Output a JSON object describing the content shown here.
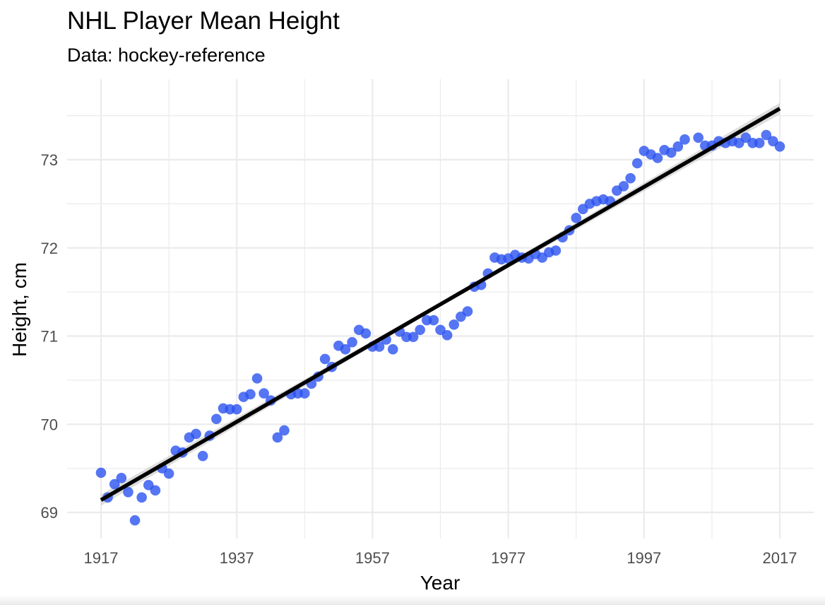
{
  "chart_data": {
    "type": "scatter",
    "title": "NHL Player Mean Height",
    "subtitle": "Data: hockey-reference",
    "xlabel": "Year",
    "ylabel": "Height, cm",
    "xlim": [
      1914,
      2020
    ],
    "ylim": [
      68.7,
      73.7
    ],
    "x_ticks": [
      1917,
      1937,
      1957,
      1977,
      1997,
      2017
    ],
    "y_ticks": [
      69,
      70,
      71,
      72,
      73
    ],
    "grid": true,
    "legend": "none",
    "colors": {
      "points": "#2a52f0",
      "trend": "#000000",
      "ribbon": "#bdbdbd",
      "grid": "#ebebeb"
    },
    "trend_line": {
      "x": [
        1917,
        2017
      ],
      "y": [
        69.14,
        73.58
      ]
    },
    "series": [
      {
        "x": [
          1917,
          1918,
          1919,
          1920,
          1921,
          1922,
          1923,
          1924,
          1925,
          1926,
          1927,
          1928,
          1929,
          1930,
          1931,
          1932,
          1933,
          1934,
          1935,
          1936,
          1937,
          1938,
          1939,
          1940,
          1941,
          1942,
          1943,
          1944,
          1945,
          1946,
          1947,
          1948,
          1949,
          1950,
          1951,
          1952,
          1953,
          1954,
          1955,
          1956,
          1957,
          1958,
          1959,
          1960,
          1961,
          1962,
          1963,
          1964,
          1965,
          1966,
          1967,
          1968,
          1969,
          1970,
          1971,
          1972,
          1973,
          1974,
          1975,
          1976,
          1977,
          1978,
          1979,
          1980,
          1981,
          1982,
          1983,
          1984,
          1985,
          1986,
          1987,
          1988,
          1989,
          1990,
          1991,
          1992,
          1993,
          1994,
          1995,
          1996,
          1997,
          1998,
          1999,
          2000,
          2001,
          2002,
          2003,
          2005,
          2006,
          2007,
          2008,
          2009,
          2010,
          2011,
          2012,
          2013,
          2014,
          2015,
          2016,
          2017
        ],
        "y": [
          69.45,
          69.17,
          69.32,
          69.39,
          69.23,
          68.91,
          69.17,
          69.31,
          69.25,
          69.5,
          69.44,
          69.7,
          69.68,
          69.85,
          69.89,
          69.64,
          69.87,
          70.06,
          70.18,
          70.17,
          70.17,
          70.31,
          70.34,
          70.52,
          70.35,
          70.27,
          69.85,
          69.93,
          70.34,
          70.35,
          70.35,
          70.46,
          70.54,
          70.74,
          70.65,
          70.89,
          70.85,
          70.93,
          71.07,
          71.03,
          70.88,
          70.88,
          70.96,
          70.85,
          71.05,
          70.99,
          70.99,
          71.07,
          71.18,
          71.18,
          71.07,
          71.01,
          71.13,
          71.22,
          71.28,
          71.56,
          71.58,
          71.71,
          71.89,
          71.87,
          71.88,
          71.92,
          71.89,
          71.88,
          71.93,
          71.89,
          71.95,
          71.97,
          72.12,
          72.2,
          72.34,
          72.44,
          72.5,
          72.53,
          72.55,
          72.53,
          72.65,
          72.7,
          72.79,
          72.96,
          73.1,
          73.06,
          73.02,
          73.11,
          73.08,
          73.15,
          73.23,
          73.25,
          73.16,
          73.16,
          73.21,
          73.19,
          73.21,
          73.19,
          73.25,
          73.19,
          73.19,
          73.28,
          73.21,
          73.15
        ]
      }
    ]
  }
}
